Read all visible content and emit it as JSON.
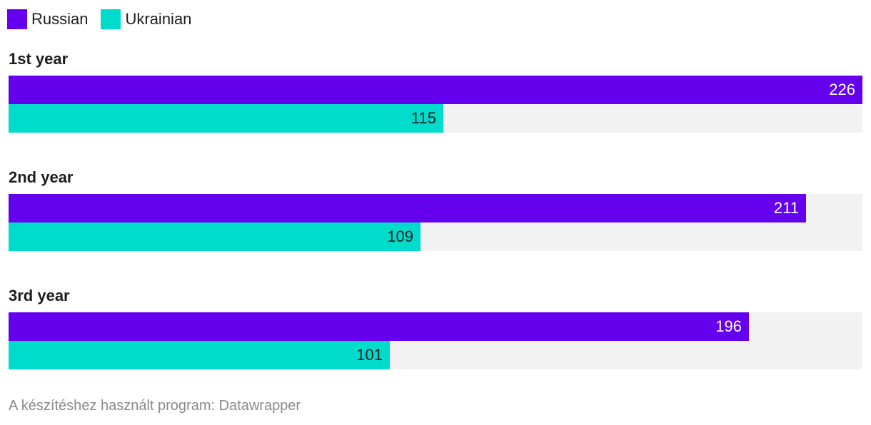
{
  "legend": [
    {
      "label": "Russian",
      "color": "#6500ee"
    },
    {
      "label": "Ukrainian",
      "color": "#00dccb"
    }
  ],
  "chart_data": {
    "type": "bar",
    "orientation": "horizontal",
    "categories": [
      "1st year",
      "2nd year",
      "3rd year"
    ],
    "series": [
      {
        "name": "Russian",
        "color": "#6500ee",
        "label_color": "#ffffff",
        "values": [
          226,
          211,
          196
        ]
      },
      {
        "name": "Ukrainian",
        "color": "#00dccb",
        "label_color": "#1d1d1d",
        "values": [
          115,
          109,
          101
        ]
      }
    ],
    "xlim": [
      0,
      226
    ],
    "title": "",
    "xlabel": "",
    "ylabel": "",
    "grid": false,
    "legend_position": "top-left"
  },
  "footer": {
    "text": "A készítéshez használt program: Datawrapper"
  }
}
